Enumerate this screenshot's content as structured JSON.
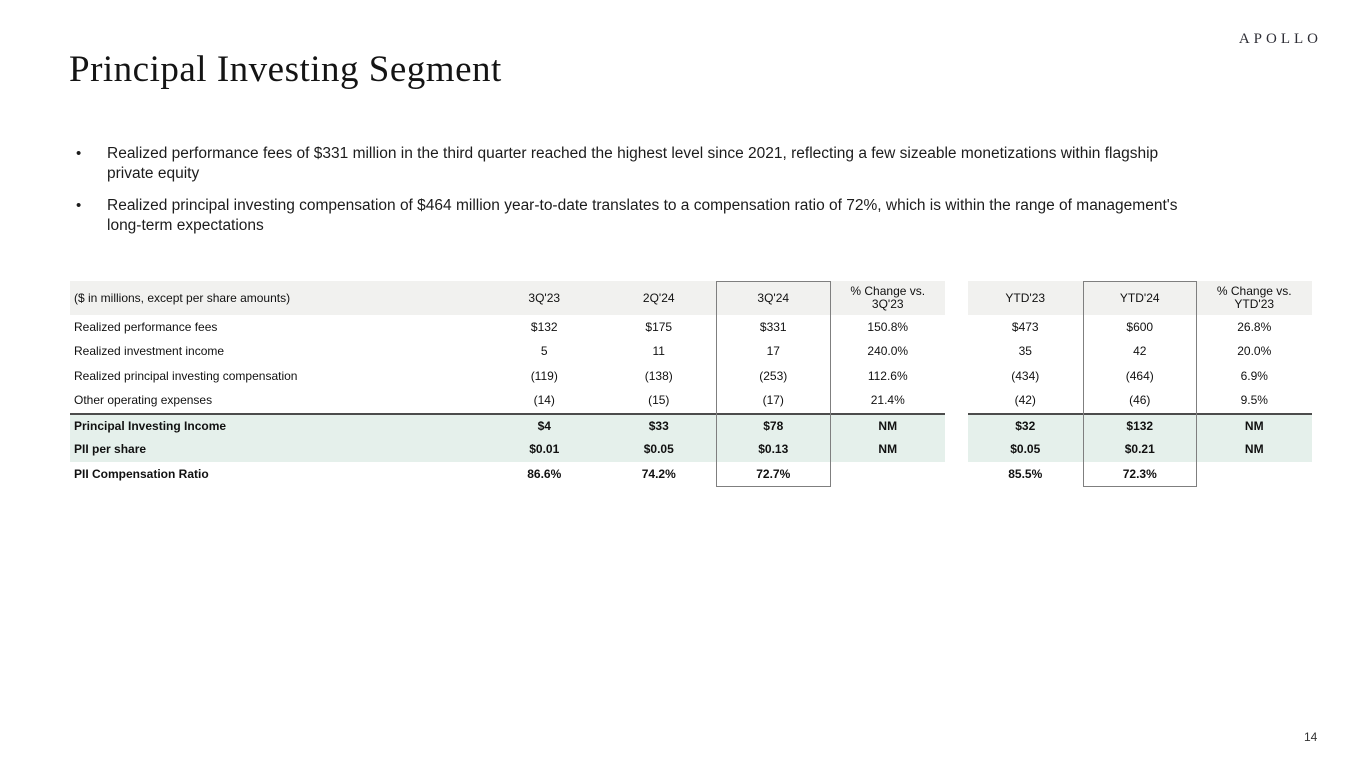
{
  "logo": "APOLLO",
  "page": {
    "title": "Principal Investing Segment",
    "page_number": "14"
  },
  "bullets": [
    {
      "line1": "Realized performance fees of $331 million in the third quarter reached the highest level since 2021, reflecting a few sizeable monetizations within flagship",
      "line2": "private equity"
    },
    {
      "line1": "Realized principal investing compensation of $464 million year-to-date translates to a compensation ratio of 72%, which is within the range of management's",
      "line2": "long-term expectations"
    }
  ],
  "table": {
    "note": "($ in millions, except per share amounts)",
    "columns": [
      "3Q'23",
      "2Q'24",
      "3Q'24",
      "% Change vs.\n3Q'23",
      "YTD'23",
      "YTD'24",
      "% Change vs.\nYTD'23"
    ],
    "rows": [
      {
        "label": "Realized performance fees",
        "values": [
          "$132",
          "$175",
          "$331",
          "150.8%",
          "$473",
          "$600",
          "26.8%"
        ]
      },
      {
        "label": "Realized investment income",
        "values": [
          "5",
          "11",
          "17",
          "240.0%",
          "35",
          "42",
          "20.0%"
        ]
      },
      {
        "label": "Realized principal investing compensation",
        "values": [
          "(119)",
          "(138)",
          "(253)",
          "112.6%",
          "(434)",
          "(464)",
          "6.9%"
        ]
      },
      {
        "label": "Other operating expenses",
        "values": [
          "(14)",
          "(15)",
          "(17)",
          "21.4%",
          "(42)",
          "(46)",
          "9.5%"
        ]
      },
      {
        "label": "Principal Investing Income",
        "values": [
          "$4",
          "$33",
          "$78",
          "NM",
          "$32",
          "$132",
          "NM"
        ]
      },
      {
        "label": "PII per share",
        "values": [
          "$0.01",
          "$0.05",
          "$0.13",
          "NM",
          "$0.05",
          "$0.21",
          "NM"
        ]
      },
      {
        "label": "PII Compensation Ratio",
        "values": [
          "86.6%",
          "74.2%",
          "72.7%",
          "",
          "85.5%",
          "72.3%",
          ""
        ]
      }
    ]
  },
  "colors": {
    "highlight_green": "#e5f0eb",
    "header_gray": "#f1f1ef",
    "box_border": "#7f7f7f",
    "separator_line": "#4c4c4c"
  }
}
